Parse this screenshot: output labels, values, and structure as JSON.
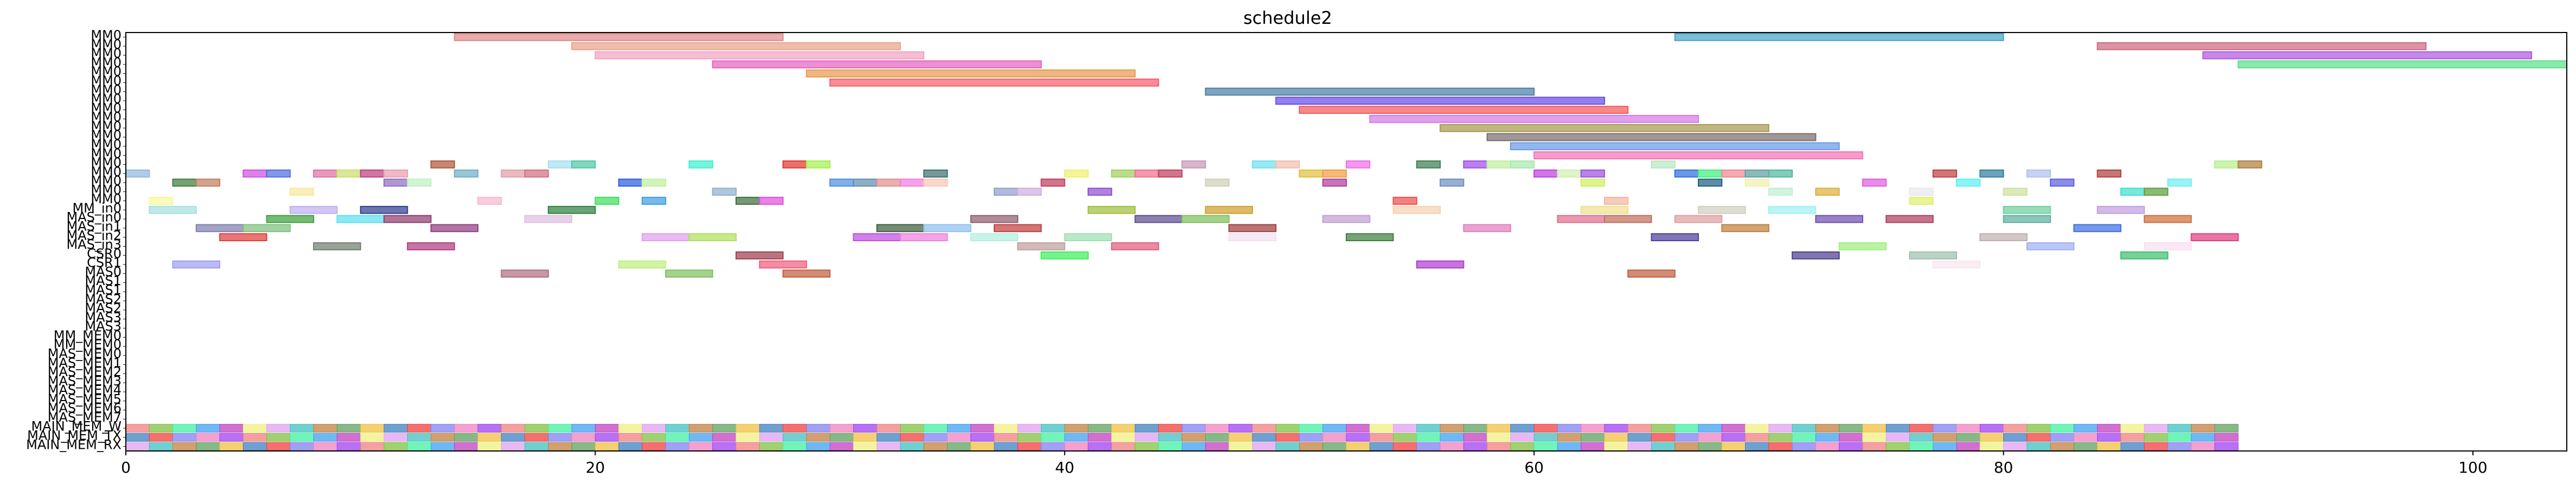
{
  "chart_data": {
    "type": "gantt",
    "title": "schedule2",
    "xlim": [
      0,
      104
    ],
    "x_ticks": [
      0,
      20,
      40,
      60,
      80,
      100
    ],
    "y_labels": [
      "MM0",
      "MM0",
      "MM0",
      "MM0",
      "MM0",
      "MM0",
      "MM0",
      "MM0",
      "MM0",
      "MM0",
      "MM0",
      "MM0",
      "MM0",
      "MM0",
      "MM0",
      "MM0",
      "MM0",
      "MM0",
      "MM0",
      "MM_in0",
      "MAS_in0",
      "MAS_in1",
      "MAS_in2",
      "MAS_in3",
      "CSR0",
      "CSR1",
      "MAS0",
      "MAS1",
      "MAS1",
      "MAS2",
      "MAS2",
      "MAS3",
      "MAS3",
      "MM_MEM0",
      "MM_MEM0",
      "MAS_MEM0",
      "MAS_MEM1",
      "MAS_MEM2",
      "MAS_MEM3",
      "MAS_MEM4",
      "MAS_MEM5",
      "MAS_MEM6",
      "MAS_MEM7",
      "MAIN_MEM_W",
      "MAIN_MEM_TX",
      "MAIN_MEM_RX"
    ],
    "bars": [
      {
        "row": 0,
        "start": 14,
        "end": 28,
        "color": "#e08a8a"
      },
      {
        "row": 0,
        "start": 66,
        "end": 80,
        "color": "#4aa3c8"
      },
      {
        "row": 1,
        "start": 19,
        "end": 33,
        "color": "#e8a58a"
      },
      {
        "row": 1,
        "start": 84,
        "end": 98,
        "color": "#cc6b80"
      },
      {
        "row": 2,
        "start": 20,
        "end": 34,
        "color": "#f2a3c5"
      },
      {
        "row": 2,
        "start": 88.5,
        "end": 102.5,
        "color": "#b05ae0"
      },
      {
        "row": 3,
        "start": 25,
        "end": 39,
        "color": "#e565c0"
      },
      {
        "row": 3,
        "start": 90,
        "end": 104,
        "color": "#5ce08a"
      },
      {
        "row": 4,
        "start": 29,
        "end": 43,
        "color": "#e89a50"
      },
      {
        "row": 5,
        "start": 30,
        "end": 44,
        "color": "#f5606e"
      },
      {
        "row": 6,
        "start": 46,
        "end": 60,
        "color": "#4e7fa6"
      },
      {
        "row": 7,
        "start": 49,
        "end": 63,
        "color": "#6a4ee8"
      },
      {
        "row": 8,
        "start": 50,
        "end": 64,
        "color": "#f25a5a"
      },
      {
        "row": 9,
        "start": 53,
        "end": 67,
        "color": "#d67ae8"
      },
      {
        "row": 10,
        "start": 56,
        "end": 70,
        "color": "#a89a50"
      },
      {
        "row": 11,
        "start": 58,
        "end": 72,
        "color": "#7a6e6e"
      },
      {
        "row": 12,
        "start": 59,
        "end": 73,
        "color": "#6a9ae8"
      },
      {
        "row": 13,
        "start": 60,
        "end": 74,
        "color": "#f575b5"
      },
      {
        "row": 14,
        "start": 13,
        "end": 14,
        "color": "#b05a40"
      },
      {
        "row": 14,
        "start": 18,
        "end": 19,
        "color": "#a8e0f0"
      },
      {
        "row": 14,
        "start": 19,
        "end": 20,
        "color": "#50c8a8"
      },
      {
        "row": 14,
        "start": 24,
        "end": 25,
        "color": "#40f0d0"
      },
      {
        "row": 14,
        "start": 28,
        "end": 29,
        "color": "#e03a30"
      },
      {
        "row": 14,
        "start": 29,
        "end": 30,
        "color": "#a8f050"
      },
      {
        "row": 14,
        "start": 45,
        "end": 46,
        "color": "#c898b8"
      },
      {
        "row": 14,
        "start": 48,
        "end": 49,
        "color": "#70e0f0"
      },
      {
        "row": 14,
        "start": 49,
        "end": 50,
        "color": "#f0c0b0"
      },
      {
        "row": 14,
        "start": 52,
        "end": 53,
        "color": "#f070e8"
      },
      {
        "row": 14,
        "start": 55,
        "end": 56,
        "color": "#408050"
      },
      {
        "row": 14,
        "start": 57,
        "end": 58,
        "color": "#a050e8"
      },
      {
        "row": 14,
        "start": 58,
        "end": 59,
        "color": "#c0f0a0"
      },
      {
        "row": 14,
        "start": 59,
        "end": 60,
        "color": "#a8e8b0"
      },
      {
        "row": 14,
        "start": 65,
        "end": 66,
        "color": "#b8e8c0"
      },
      {
        "row": 14,
        "start": 89,
        "end": 90,
        "color": "#b8f090"
      },
      {
        "row": 14,
        "start": 90,
        "end": 91,
        "color": "#b08040"
      },
      {
        "row": 15,
        "start": 0,
        "end": 1,
        "color": "#90b8e0"
      },
      {
        "row": 15,
        "start": 5,
        "end": 6,
        "color": "#d050e0"
      },
      {
        "row": 15,
        "start": 6,
        "end": 7,
        "color": "#5070e0"
      },
      {
        "row": 15,
        "start": 8,
        "end": 9,
        "color": "#e070a0"
      },
      {
        "row": 15,
        "start": 9,
        "end": 10,
        "color": "#c8e070"
      },
      {
        "row": 15,
        "start": 10,
        "end": 11,
        "color": "#c04080"
      },
      {
        "row": 15,
        "start": 11,
        "end": 12,
        "color": "#e8a0b0"
      },
      {
        "row": 15,
        "start": 14,
        "end": 15,
        "color": "#70b0c8"
      },
      {
        "row": 15,
        "start": 16,
        "end": 17,
        "color": "#e0a0a8"
      },
      {
        "row": 15,
        "start": 17,
        "end": 18,
        "color": "#d07080"
      },
      {
        "row": 15,
        "start": 34,
        "end": 35,
        "color": "#407070"
      },
      {
        "row": 15,
        "start": 40,
        "end": 41,
        "color": "#f0f070"
      },
      {
        "row": 15,
        "start": 42,
        "end": 43,
        "color": "#a0d060"
      },
      {
        "row": 15,
        "start": 43,
        "end": 44,
        "color": "#f07090"
      },
      {
        "row": 15,
        "start": 44,
        "end": 45,
        "color": "#c04060"
      },
      {
        "row": 15,
        "start": 50,
        "end": 51,
        "color": "#e0c040"
      },
      {
        "row": 15,
        "start": 51,
        "end": 52,
        "color": "#f0a040"
      },
      {
        "row": 15,
        "start": 60,
        "end": 61,
        "color": "#c040e0"
      },
      {
        "row": 15,
        "start": 61,
        "end": 62,
        "color": "#d0f0b0"
      },
      {
        "row": 15,
        "start": 62,
        "end": 63,
        "color": "#a050e0"
      },
      {
        "row": 15,
        "start": 66,
        "end": 67,
        "color": "#3070e0"
      },
      {
        "row": 15,
        "start": 67,
        "end": 68,
        "color": "#40f080"
      },
      {
        "row": 15,
        "start": 68,
        "end": 69,
        "color": "#f08890"
      },
      {
        "row": 15,
        "start": 69,
        "end": 70,
        "color": "#60a0a0"
      },
      {
        "row": 15,
        "start": 70,
        "end": 71,
        "color": "#50b8a0"
      },
      {
        "row": 15,
        "start": 77,
        "end": 78,
        "color": "#c04040"
      },
      {
        "row": 15,
        "start": 79,
        "end": 80,
        "color": "#3080a0"
      },
      {
        "row": 15,
        "start": 81,
        "end": 82,
        "color": "#b0c0f0"
      },
      {
        "row": 15,
        "start": 84,
        "end": 85,
        "color": "#b04040"
      },
      {
        "row": 16,
        "start": 2,
        "end": 3,
        "color": "#408040"
      },
      {
        "row": 16,
        "start": 3,
        "end": 4,
        "color": "#c08060"
      },
      {
        "row": 16,
        "start": 11,
        "end": 12,
        "color": "#9070c0"
      },
      {
        "row": 16,
        "start": 12,
        "end": 13,
        "color": "#c0f0c0"
      },
      {
        "row": 16,
        "start": 21,
        "end": 22,
        "color": "#3060e0"
      },
      {
        "row": 16,
        "start": 22,
        "end": 23,
        "color": "#c0f0a0"
      },
      {
        "row": 16,
        "start": 30,
        "end": 31,
        "color": "#5090e0"
      },
      {
        "row": 16,
        "start": 31,
        "end": 32,
        "color": "#6090b0"
      },
      {
        "row": 16,
        "start": 32,
        "end": 33,
        "color": "#e09090"
      },
      {
        "row": 16,
        "start": 33,
        "end": 34,
        "color": "#f080e0"
      },
      {
        "row": 16,
        "start": 34,
        "end": 35,
        "color": "#f8c8b8"
      },
      {
        "row": 16,
        "start": 39,
        "end": 40,
        "color": "#c04060"
      },
      {
        "row": 16,
        "start": 46,
        "end": 47,
        "color": "#d0d0b8"
      },
      {
        "row": 16,
        "start": 51,
        "end": 52,
        "color": "#b040a0"
      },
      {
        "row": 16,
        "start": 56,
        "end": 57,
        "color": "#7090c0"
      },
      {
        "row": 16,
        "start": 62,
        "end": 63,
        "color": "#d0f060"
      },
      {
        "row": 16,
        "start": 67,
        "end": 68,
        "color": "#206080"
      },
      {
        "row": 16,
        "start": 69,
        "end": 70,
        "color": "#f0f0b0"
      },
      {
        "row": 16,
        "start": 74,
        "end": 75,
        "color": "#e060e0"
      },
      {
        "row": 16,
        "start": 78,
        "end": 79,
        "color": "#60f0f0"
      },
      {
        "row": 16,
        "start": 82,
        "end": 83,
        "color": "#6060e0"
      },
      {
        "row": 16,
        "start": 87,
        "end": 88,
        "color": "#70f0f0"
      },
      {
        "row": 17,
        "start": 7,
        "end": 8,
        "color": "#f8e8a0"
      },
      {
        "row": 17,
        "start": 25,
        "end": 26,
        "color": "#90b0d0"
      },
      {
        "row": 17,
        "start": 37,
        "end": 38,
        "color": "#90a0d0"
      },
      {
        "row": 17,
        "start": 38,
        "end": 39,
        "color": "#d0b0e0"
      },
      {
        "row": 17,
        "start": 41,
        "end": 42,
        "color": "#9050d0"
      },
      {
        "row": 17,
        "start": 70,
        "end": 71,
        "color": "#c0f0d0"
      },
      {
        "row": 17,
        "start": 72,
        "end": 73,
        "color": "#e0b040"
      },
      {
        "row": 17,
        "start": 76,
        "end": 77,
        "color": "#e8e8f0"
      },
      {
        "row": 17,
        "start": 80,
        "end": 81,
        "color": "#d0e0a0"
      },
      {
        "row": 17,
        "start": 85,
        "end": 86,
        "color": "#40e0d0"
      },
      {
        "row": 17,
        "start": 86,
        "end": 87,
        "color": "#60a040"
      },
      {
        "row": 18,
        "start": 1,
        "end": 2,
        "color": "#f8f8a0"
      },
      {
        "row": 18,
        "start": 15,
        "end": 16,
        "color": "#f8b8d0"
      },
      {
        "row": 18,
        "start": 20,
        "end": 21,
        "color": "#40e060"
      },
      {
        "row": 18,
        "start": 22,
        "end": 23,
        "color": "#40a0e0"
      },
      {
        "row": 18,
        "start": 26,
        "end": 27,
        "color": "#407040"
      },
      {
        "row": 18,
        "start": 27,
        "end": 28,
        "color": "#e050e0"
      },
      {
        "row": 18,
        "start": 54,
        "end": 55,
        "color": "#f05050"
      },
      {
        "row": 18,
        "start": 63,
        "end": 64,
        "color": "#f0b8a0"
      },
      {
        "row": 18,
        "start": 76,
        "end": 77,
        "color": "#e0f070"
      },
      {
        "row": 19,
        "start": 1,
        "end": 3,
        "color": "#a8e0e0"
      },
      {
        "row": 19,
        "start": 7,
        "end": 9,
        "color": "#c0b0f0"
      },
      {
        "row": 19,
        "start": 10,
        "end": 12,
        "color": "#304090"
      },
      {
        "row": 19,
        "start": 18,
        "end": 20,
        "color": "#308040"
      },
      {
        "row": 19,
        "start": 41,
        "end": 43,
        "color": "#a0c040"
      },
      {
        "row": 19,
        "start": 46,
        "end": 48,
        "color": "#d0a030"
      },
      {
        "row": 19,
        "start": 54,
        "end": 56,
        "color": "#f8d0b0"
      },
      {
        "row": 19,
        "start": 62,
        "end": 64,
        "color": "#f0e090"
      },
      {
        "row": 19,
        "start": 67,
        "end": 69,
        "color": "#d0d0c0"
      },
      {
        "row": 19,
        "start": 70,
        "end": 72,
        "color": "#a0f0f0"
      },
      {
        "row": 19,
        "start": 80,
        "end": 82,
        "color": "#70d0a0"
      },
      {
        "row": 19,
        "start": 84,
        "end": 86,
        "color": "#c0a0e0"
      },
      {
        "row": 20,
        "start": 6,
        "end": 8,
        "color": "#40a040"
      },
      {
        "row": 20,
        "start": 9,
        "end": 11,
        "color": "#60e0f0"
      },
      {
        "row": 20,
        "start": 11,
        "end": 13,
        "color": "#904070"
      },
      {
        "row": 20,
        "start": 17,
        "end": 19,
        "color": "#e0c0e0"
      },
      {
        "row": 20,
        "start": 36,
        "end": 38,
        "color": "#906070"
      },
      {
        "row": 20,
        "start": 43,
        "end": 45,
        "color": "#605090"
      },
      {
        "row": 20,
        "start": 45,
        "end": 47,
        "color": "#80c060"
      },
      {
        "row": 20,
        "start": 51,
        "end": 53,
        "color": "#c0a0d0"
      },
      {
        "row": 20,
        "start": 61,
        "end": 63,
        "color": "#e07090"
      },
      {
        "row": 20,
        "start": 63,
        "end": 65,
        "color": "#c07060"
      },
      {
        "row": 20,
        "start": 66,
        "end": 68,
        "color": "#e0a0a0"
      },
      {
        "row": 20,
        "start": 72,
        "end": 74,
        "color": "#7050b0"
      },
      {
        "row": 20,
        "start": 75,
        "end": 77,
        "color": "#b04060"
      },
      {
        "row": 20,
        "start": 80,
        "end": 82,
        "color": "#60b0a0"
      },
      {
        "row": 20,
        "start": 86,
        "end": 88,
        "color": "#d07040"
      },
      {
        "row": 21,
        "start": 3,
        "end": 5,
        "color": "#8080b0"
      },
      {
        "row": 21,
        "start": 5,
        "end": 7,
        "color": "#80c080"
      },
      {
        "row": 21,
        "start": 13,
        "end": 15,
        "color": "#904080"
      },
      {
        "row": 21,
        "start": 32,
        "end": 34,
        "color": "#406040"
      },
      {
        "row": 21,
        "start": 34,
        "end": 36,
        "color": "#90c0f0"
      },
      {
        "row": 21,
        "start": 37,
        "end": 39,
        "color": "#c04040"
      },
      {
        "row": 21,
        "start": 47,
        "end": 49,
        "color": "#a04040"
      },
      {
        "row": 21,
        "start": 57,
        "end": 59,
        "color": "#e080c0"
      },
      {
        "row": 21,
        "start": 68,
        "end": 70,
        "color": "#c08040"
      },
      {
        "row": 21,
        "start": 83,
        "end": 85,
        "color": "#4070e0"
      },
      {
        "row": 22,
        "start": 4,
        "end": 6,
        "color": "#e04040"
      },
      {
        "row": 22,
        "start": 22,
        "end": 24,
        "color": "#e0a0f0"
      },
      {
        "row": 22,
        "start": 24,
        "end": 26,
        "color": "#b0e060"
      },
      {
        "row": 22,
        "start": 31,
        "end": 33,
        "color": "#c050e0"
      },
      {
        "row": 22,
        "start": 33,
        "end": 35,
        "color": "#f080e0"
      },
      {
        "row": 22,
        "start": 36,
        "end": 38,
        "color": "#b0f0e0"
      },
      {
        "row": 22,
        "start": 40,
        "end": 42,
        "color": "#a0e0b0"
      },
      {
        "row": 22,
        "start": 47,
        "end": 49,
        "color": "#f0e0f0"
      },
      {
        "row": 22,
        "start": 52,
        "end": 54,
        "color": "#408040"
      },
      {
        "row": 22,
        "start": 65,
        "end": 67,
        "color": "#5040a0"
      },
      {
        "row": 22,
        "start": 79,
        "end": 81,
        "color": "#c0b0b0"
      },
      {
        "row": 22,
        "start": 88,
        "end": 90,
        "color": "#e04080"
      },
      {
        "row": 23,
        "start": 8,
        "end": 10,
        "color": "#708070"
      },
      {
        "row": 23,
        "start": 12,
        "end": 14,
        "color": "#b04080"
      },
      {
        "row": 23,
        "start": 38,
        "end": 40,
        "color": "#c0a0a0"
      },
      {
        "row": 23,
        "start": 42,
        "end": 44,
        "color": "#e06080"
      },
      {
        "row": 23,
        "start": 73,
        "end": 75,
        "color": "#a0f080"
      },
      {
        "row": 23,
        "start": 81,
        "end": 83,
        "color": "#a0b0f0"
      },
      {
        "row": 23,
        "start": 86,
        "end": 88,
        "color": "#f8e0f0"
      },
      {
        "row": 24,
        "start": 26,
        "end": 28,
        "color": "#a04050"
      },
      {
        "row": 24,
        "start": 39,
        "end": 41,
        "color": "#40f060"
      },
      {
        "row": 24,
        "start": 71,
        "end": 73,
        "color": "#504090"
      },
      {
        "row": 24,
        "start": 76,
        "end": 78,
        "color": "#a0c0b0"
      },
      {
        "row": 24,
        "start": 85,
        "end": 87,
        "color": "#40c070"
      },
      {
        "row": 25,
        "start": 2,
        "end": 4,
        "color": "#a0a0f0"
      },
      {
        "row": 25,
        "start": 21,
        "end": 23,
        "color": "#c0f080"
      },
      {
        "row": 25,
        "start": 27,
        "end": 29,
        "color": "#f06080"
      },
      {
        "row": 25,
        "start": 55,
        "end": 57,
        "color": "#b040d0"
      },
      {
        "row": 25,
        "start": 77,
        "end": 79,
        "color": "#f8e8f0"
      },
      {
        "row": 26,
        "start": 16,
        "end": 18,
        "color": "#b07080"
      },
      {
        "row": 26,
        "start": 23,
        "end": 25,
        "color": "#80c060"
      },
      {
        "row": 26,
        "start": 28,
        "end": 30,
        "color": "#c06040"
      },
      {
        "row": 26,
        "start": 64,
        "end": 66,
        "color": "#c06040"
      }
    ]
  }
}
